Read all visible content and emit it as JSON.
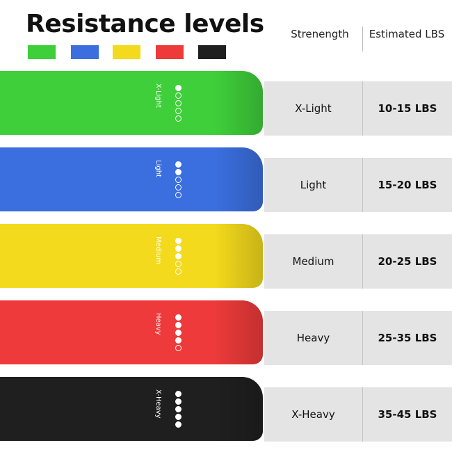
{
  "title": "Resistance levels",
  "headers": {
    "strength": "Strenength",
    "estimated": "Estimated LBS"
  },
  "bands": [
    {
      "level": "X-Light",
      "band_text": "X-Light",
      "lbs": "10-15 LBS",
      "color": "#3fcf3a",
      "filled_dots": 1
    },
    {
      "level": "Light",
      "band_text": "Light",
      "lbs": "15-20 LBS",
      "color": "#3b6fe0",
      "filled_dots": 2
    },
    {
      "level": "Medium",
      "band_text": "Medium",
      "lbs": "20-25 LBS",
      "color": "#f4da1c",
      "filled_dots": 3
    },
    {
      "level": "Heavy",
      "band_text": "Heavy",
      "lbs": "25-35 LBS",
      "color": "#ee3a3a",
      "filled_dots": 4
    },
    {
      "level": "X-Heavy",
      "band_text": "X-Heavy",
      "lbs": "35-45 LBS",
      "color": "#1f1f1f",
      "filled_dots": 5
    }
  ]
}
